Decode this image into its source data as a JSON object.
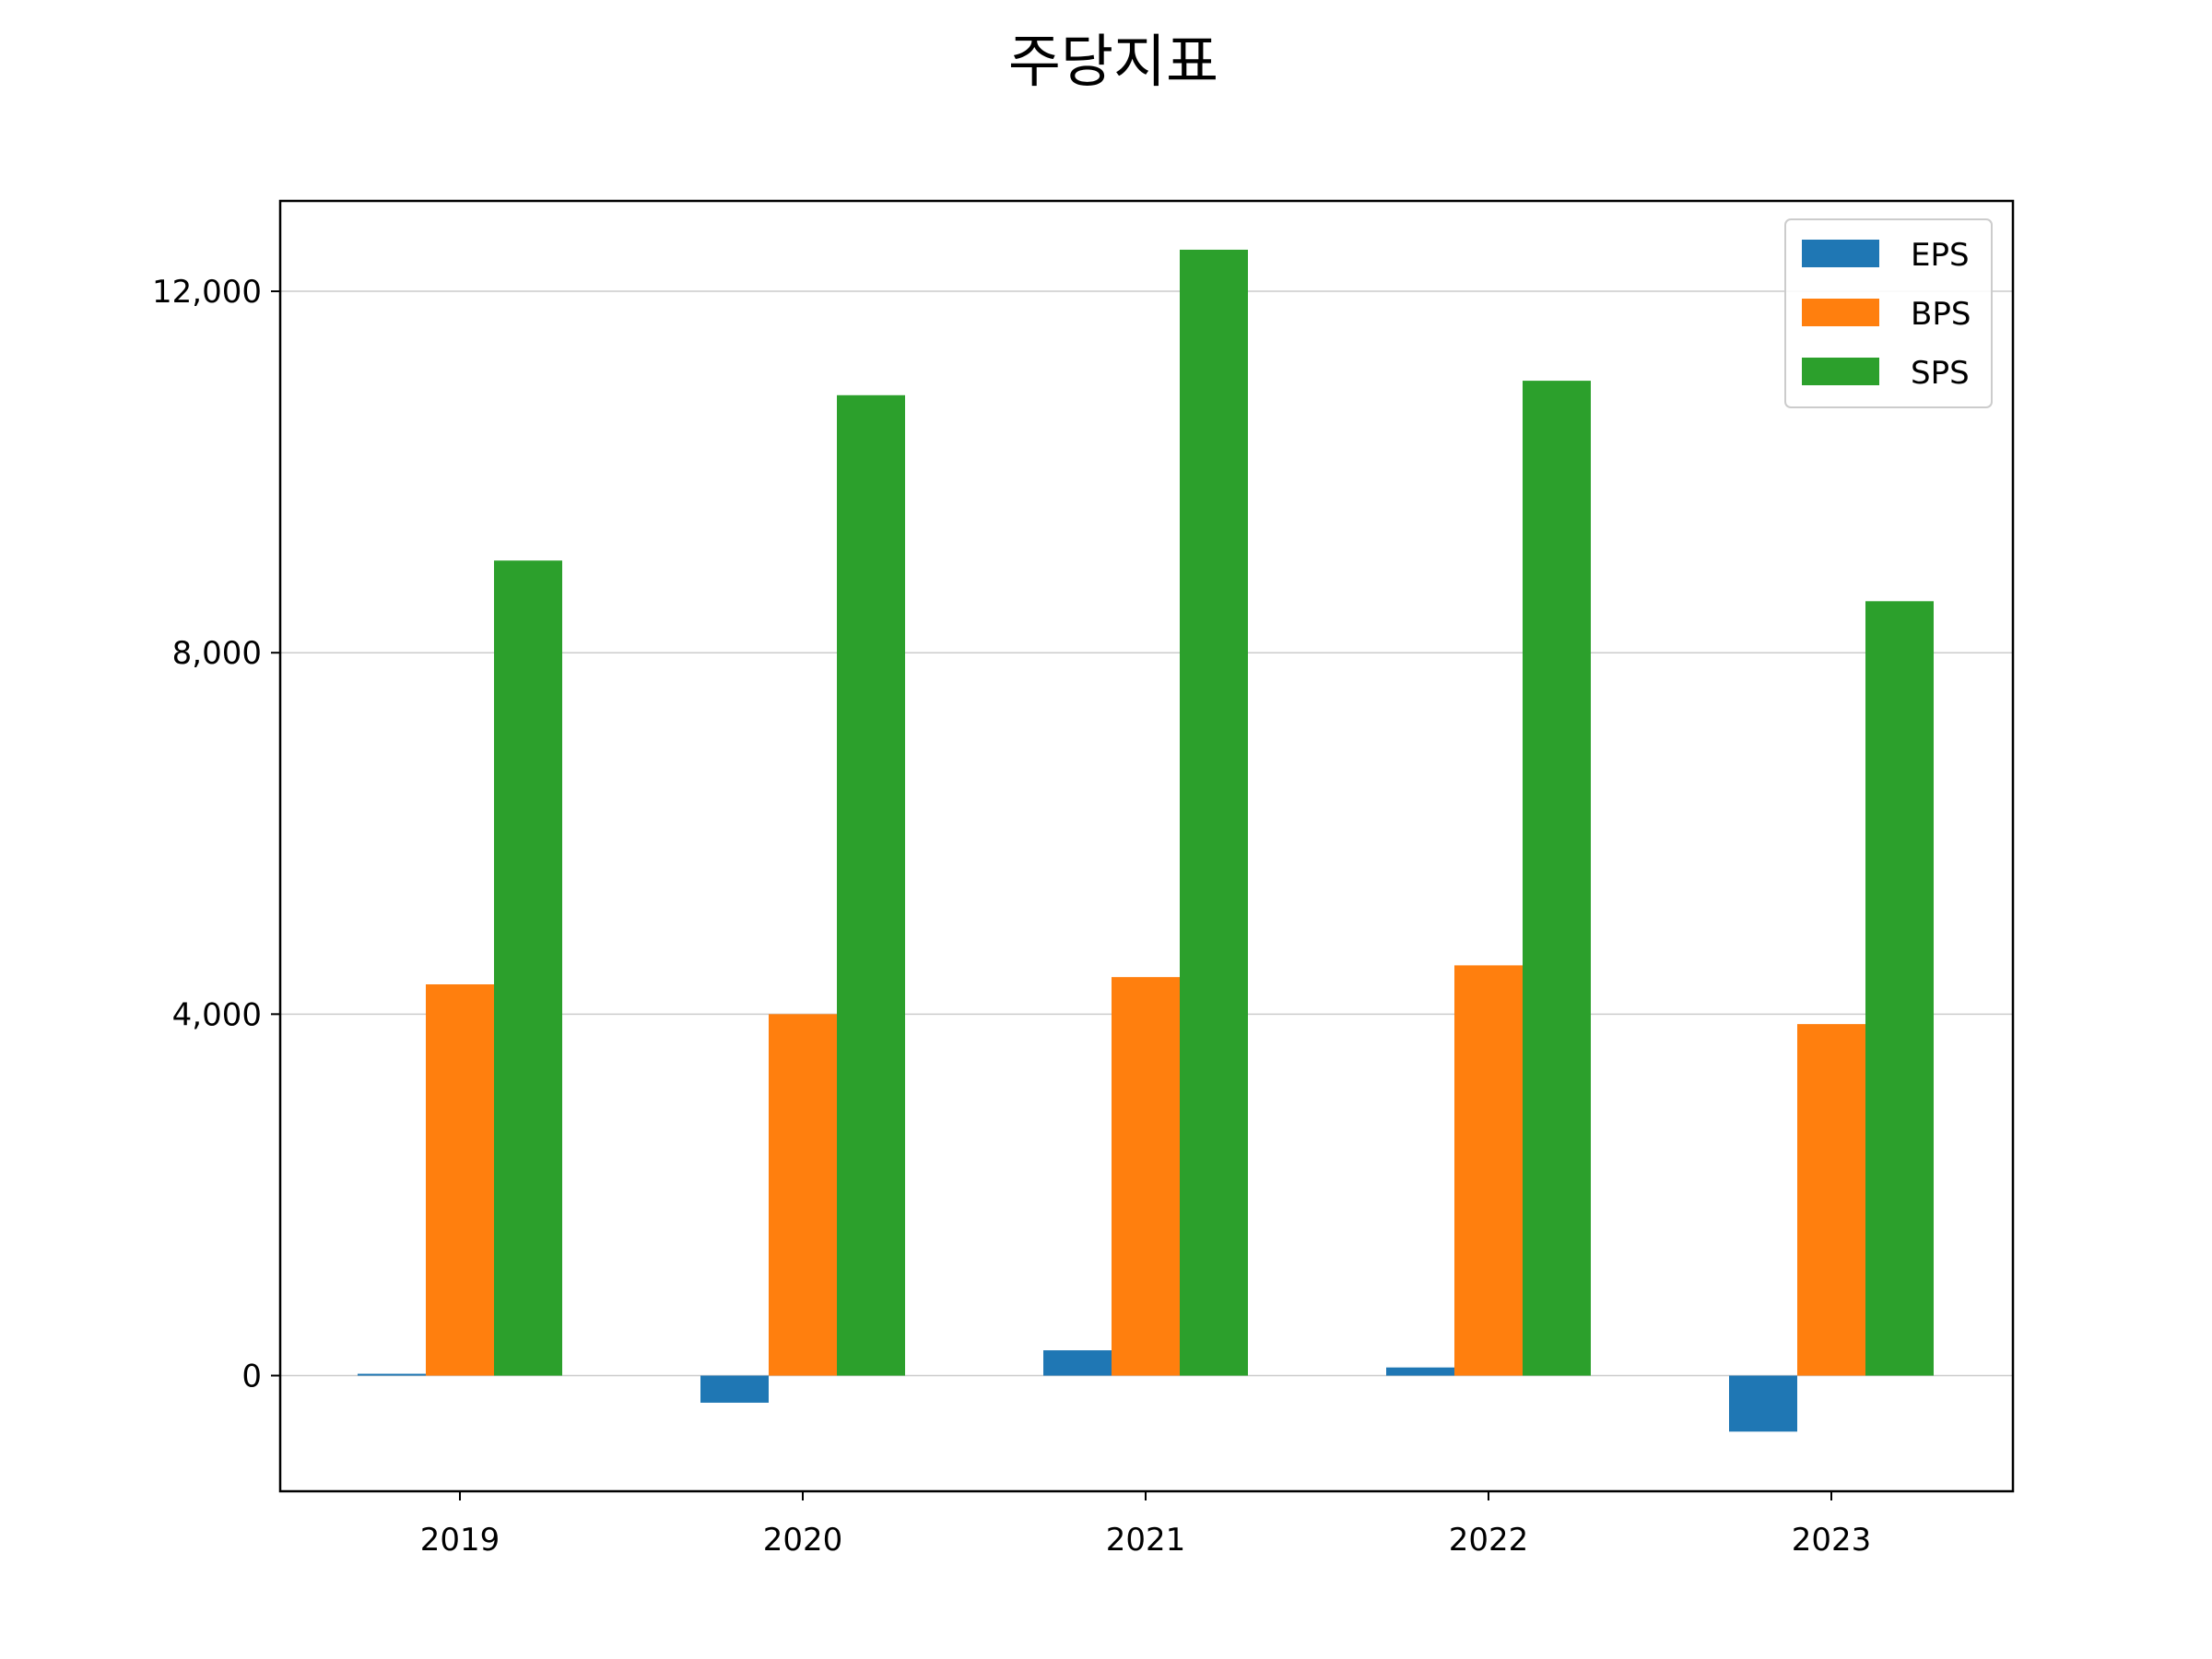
{
  "chart_data": {
    "type": "bar",
    "title": "주당지표",
    "xlabel": "",
    "ylabel": "",
    "categories": [
      "2019",
      "2020",
      "2021",
      "2022",
      "2023"
    ],
    "series": [
      {
        "name": "EPS",
        "color": "#1f77b4",
        "values": [
          20,
          -300,
          280,
          90,
          -620
        ]
      },
      {
        "name": "BPS",
        "color": "#ff7f0e",
        "values": [
          4330,
          4000,
          4410,
          4540,
          3890
        ]
      },
      {
        "name": "SPS",
        "color": "#2ca02c",
        "values": [
          9020,
          10850,
          12460,
          11010,
          8570
        ]
      }
    ],
    "ylim": [
      -1280,
      13000
    ],
    "yticks": [
      0,
      4000,
      8000,
      12000
    ],
    "ytick_labels": [
      "0",
      "4,000",
      "8,000",
      "12,000"
    ],
    "grid": "y",
    "legend": "top-right"
  }
}
